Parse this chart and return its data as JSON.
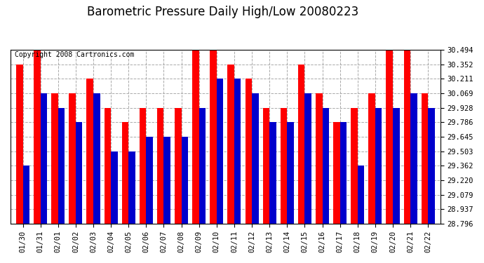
{
  "title": "Barometric Pressure Daily High/Low 20080223",
  "copyright": "Copyright 2008 Cartronics.com",
  "dates": [
    "01/30",
    "01/31",
    "02/01",
    "02/02",
    "02/03",
    "02/04",
    "02/05",
    "02/06",
    "02/07",
    "02/08",
    "02/09",
    "02/10",
    "02/11",
    "02/12",
    "02/13",
    "02/14",
    "02/15",
    "02/16",
    "02/17",
    "02/18",
    "02/19",
    "02/20",
    "02/21",
    "02/22"
  ],
  "highs": [
    30.352,
    30.494,
    30.069,
    30.069,
    30.211,
    29.928,
    29.786,
    29.928,
    29.928,
    29.928,
    30.494,
    30.494,
    30.352,
    30.211,
    29.928,
    29.928,
    30.352,
    30.069,
    29.786,
    29.928,
    30.069,
    30.494,
    30.494,
    30.069
  ],
  "lows": [
    29.362,
    30.069,
    29.928,
    29.786,
    30.069,
    29.503,
    29.503,
    29.645,
    29.645,
    29.645,
    29.928,
    30.211,
    30.211,
    30.069,
    29.786,
    29.786,
    30.069,
    29.928,
    29.786,
    29.362,
    29.928,
    29.928,
    30.069,
    29.928
  ],
  "high_color": "#ff0000",
  "low_color": "#0000cc",
  "bg_color": "#ffffff",
  "plot_bg_color": "#ffffff",
  "grid_color": "#aaaaaa",
  "yticks": [
    28.796,
    28.937,
    29.079,
    29.22,
    29.362,
    29.503,
    29.645,
    29.786,
    29.928,
    30.069,
    30.211,
    30.352,
    30.494
  ],
  "ymin": 28.796,
  "ymax": 30.494,
  "title_fontsize": 12,
  "copyright_fontsize": 7,
  "tick_fontsize": 7.5
}
